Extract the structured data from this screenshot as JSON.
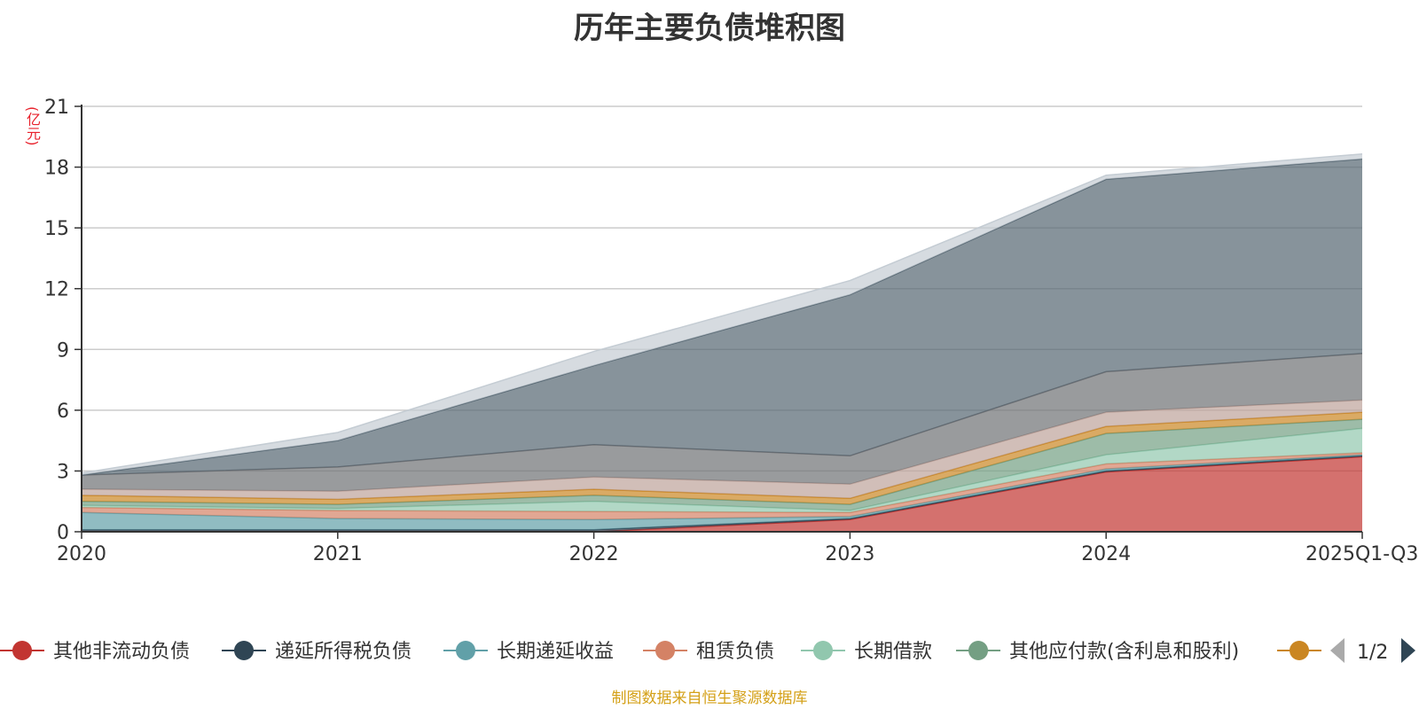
{
  "title": "历年主要负债堆积图",
  "unit_label": "(亿元)",
  "footer": "制图数据来自恒生聚源数据库",
  "pager": "1/2",
  "chart_data": {
    "type": "area",
    "stacked": true,
    "title": "历年主要负债堆积图",
    "ylabel": "(亿元)",
    "xlabel": "",
    "ylim": [
      0,
      21
    ],
    "yticks": [
      0,
      3,
      6,
      9,
      12,
      15,
      18,
      21
    ],
    "categories": [
      "2020",
      "2021",
      "2022",
      "2023",
      "2024",
      "2025Q1-Q3"
    ],
    "grid": true,
    "legend_position": "bottom",
    "series": [
      {
        "name": "其他非流动负债",
        "color": "#c23531",
        "values": [
          0.0,
          0.0,
          0.0,
          0.6,
          2.95,
          3.7
        ],
        "legend": true
      },
      {
        "name": "递延所得税负债",
        "color": "#2f4554",
        "values": [
          0.1,
          0.1,
          0.1,
          0.05,
          0.05,
          0.05
        ],
        "legend": true
      },
      {
        "name": "长期递延收益",
        "color": "#61a0a8",
        "values": [
          0.85,
          0.55,
          0.5,
          0.1,
          0.1,
          0.05
        ],
        "legend": true
      },
      {
        "name": "租赁负债",
        "color": "#d48265",
        "values": [
          0.25,
          0.4,
          0.4,
          0.2,
          0.25,
          0.1
        ],
        "legend": true
      },
      {
        "name": "长期借款",
        "color": "#91c7ae",
        "values": [
          0.1,
          0.1,
          0.5,
          0.1,
          0.45,
          1.2
        ],
        "legend": true
      },
      {
        "name": "其他应付款(含利息和股利)",
        "color": "#749f83",
        "values": [
          0.2,
          0.2,
          0.3,
          0.3,
          1.05,
          0.45
        ],
        "legend": true
      },
      {
        "name": "",
        "color": "#ca8622",
        "values": [
          0.3,
          0.25,
          0.3,
          0.3,
          0.35,
          0.35
        ],
        "legend": true
      },
      {
        "name": "",
        "color": "#bda29a",
        "values": [
          0.3,
          0.4,
          0.6,
          0.7,
          0.7,
          0.6
        ],
        "legend": false
      },
      {
        "name": "",
        "color": "#6e7074",
        "values": [
          0.7,
          1.2,
          1.6,
          1.4,
          2.0,
          2.3
        ],
        "legend": false
      },
      {
        "name": "",
        "color": "#546570",
        "values": [
          0.0,
          1.3,
          3.9,
          7.95,
          9.5,
          9.6
        ],
        "legend": false
      },
      {
        "name": "",
        "color": "#c4ccd3",
        "values": [
          0.1,
          0.4,
          0.7,
          0.7,
          0.2,
          0.25
        ],
        "legend": false
      }
    ]
  }
}
